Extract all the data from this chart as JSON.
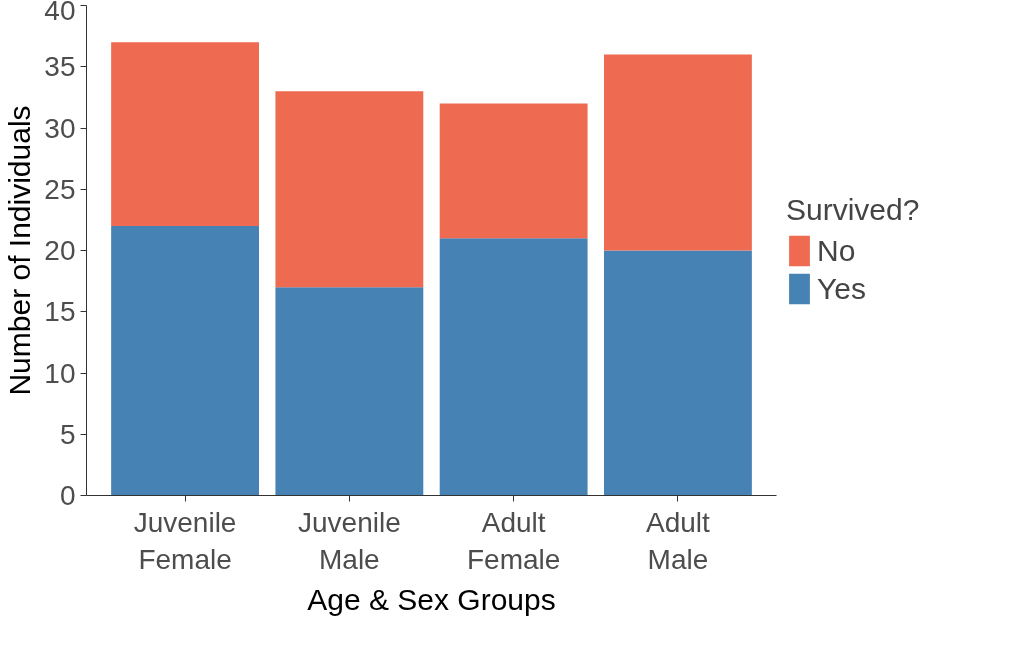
{
  "chart_data": {
    "type": "bar",
    "stacked": true,
    "xlabel": "Age & Sex Groups",
    "ylabel": "Number of Individuals",
    "legend_title": "Survived?",
    "legend": "right",
    "categories": [
      "Juvenile\nFemale",
      "Juvenile\nMale",
      "Adult\nFemale",
      "Adult\nMale"
    ],
    "series": [
      {
        "name": "Yes",
        "color": "#4682b4",
        "values": [
          22,
          17,
          21,
          20
        ]
      },
      {
        "name": "No",
        "color": "#ee6a50",
        "values": [
          15,
          16,
          11,
          16
        ]
      }
    ],
    "ylim": [
      0,
      40
    ],
    "yticks": [
      0,
      5,
      10,
      15,
      20,
      25,
      30,
      35,
      40
    ],
    "grid": false
  }
}
